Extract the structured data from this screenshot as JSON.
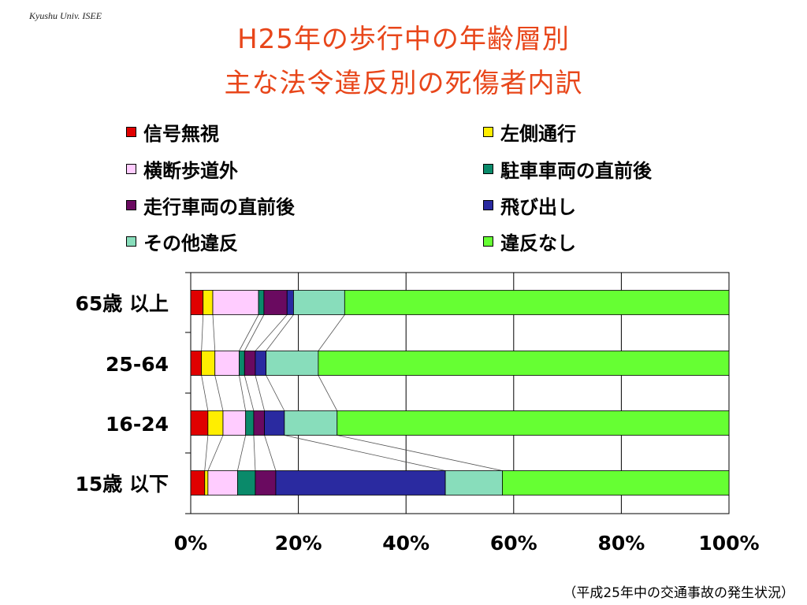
{
  "header": {
    "credit": "Kyushu Univ. ISEE",
    "title_line1": "H25年の歩行中の年齢層別",
    "title_line2": "主な法令違反別の死傷者内訳"
  },
  "legend": [
    {
      "label": "信号無視",
      "color": "#e00000"
    },
    {
      "label": "左側通行",
      "color": "#ffee00"
    },
    {
      "label": "横断歩道外",
      "color": "#ffccff"
    },
    {
      "label": "駐車車両の直前後",
      "color": "#0a8a6a"
    },
    {
      "label": "走行車両の直前後",
      "color": "#6a0a60"
    },
    {
      "label": "飛び出し",
      "color": "#2a2aa0"
    },
    {
      "label": "その他違反",
      "color": "#88ddbb"
    },
    {
      "label": "違反なし",
      "color": "#66ff33"
    }
  ],
  "chart_data": {
    "type": "bar",
    "orientation": "horizontal",
    "stacked": "percent",
    "categories": [
      "65歳 以上",
      "25-64",
      "16-24",
      "15歳 以下"
    ],
    "series": [
      {
        "name": "信号無視",
        "values": [
          2.3,
          2.0,
          3.2,
          2.6
        ]
      },
      {
        "name": "左側通行",
        "values": [
          1.8,
          2.5,
          2.8,
          0.6
        ]
      },
      {
        "name": "横断歩道外",
        "values": [
          8.5,
          4.5,
          4.2,
          5.5
        ]
      },
      {
        "name": "駐車車両の直前後",
        "values": [
          1.0,
          1.0,
          1.5,
          3.3
        ]
      },
      {
        "name": "走行車両の直前後",
        "values": [
          4.3,
          2.0,
          2.0,
          3.8
        ]
      },
      {
        "name": "飛び出し",
        "values": [
          1.2,
          2.0,
          3.7,
          31.5
        ]
      },
      {
        "name": "その他違反",
        "values": [
          9.5,
          9.7,
          9.8,
          10.6
        ]
      },
      {
        "name": "違反なし",
        "values": [
          71.4,
          76.3,
          72.8,
          42.1
        ]
      }
    ],
    "xaxis": {
      "ticks": [
        "0%",
        "20%",
        "40%",
        "60%",
        "80%",
        "100%"
      ],
      "range": [
        0,
        100
      ]
    },
    "grid": true,
    "series_lines": true
  },
  "footer": {
    "source": "（平成25年中の交通事故の発生状況）"
  }
}
